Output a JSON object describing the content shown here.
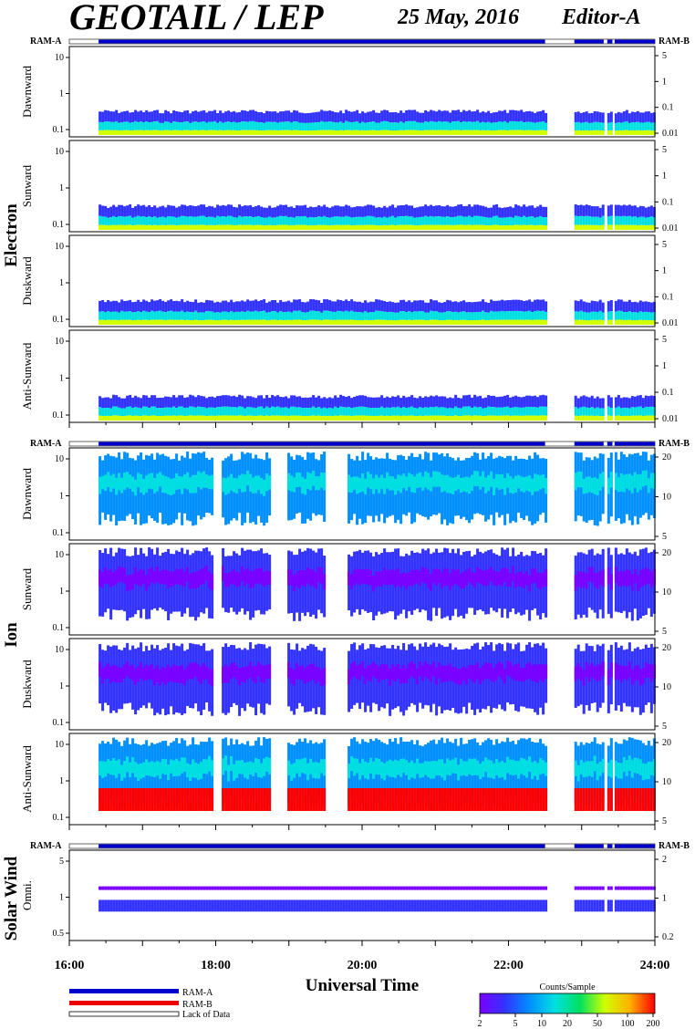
{
  "header": {
    "title": "GEOTAIL / LEP",
    "date": "25 May, 2016",
    "editor": "Editor-A"
  },
  "ram": {
    "left": "RAM-A",
    "right": "RAM-B"
  },
  "groups": {
    "electron": "Electron",
    "ion": "Ion",
    "solar_wind": "Solar Wind"
  },
  "colors": {
    "ram_a": "#0000cc",
    "ram_b": "#ee0000",
    "lack": "#ffffff"
  },
  "legend": {
    "ram_a": "RAM-A",
    "ram_b": "RAM-B",
    "lack": "Lack of Data"
  },
  "colorbar": {
    "title": "Counts/Sample",
    "ticks": [
      "2",
      "5",
      "10",
      "20",
      "50",
      "100",
      "200"
    ],
    "colors": [
      "#7a00ff",
      "#3333ff",
      "#0090ff",
      "#00e0e0",
      "#00e060",
      "#d0ff00",
      "#ffb000",
      "#ff0000"
    ]
  },
  "chart_data": {
    "type": "heatmap",
    "xlabel": "Universal Time",
    "x_ticks": [
      "16:00",
      "18:00",
      "20:00",
      "22:00",
      "24:00"
    ],
    "x_range_hours": [
      16,
      24
    ],
    "data_coverage_hours": [
      [
        16.4,
        22.5
      ],
      [
        22.9,
        23.3
      ],
      [
        23.35,
        23.42
      ],
      [
        23.45,
        24.0
      ]
    ],
    "panels": [
      {
        "group": "Electron",
        "name": "Dawnward",
        "y_ticks": [
          "0.1",
          "1",
          "10"
        ],
        "y_right_ticks": [
          "0.01",
          "0.1",
          "1",
          "5"
        ]
      },
      {
        "group": "Electron",
        "name": "Sunward",
        "y_ticks": [
          "0.1",
          "1",
          "10"
        ],
        "y_right_ticks": [
          "0.01",
          "0.1",
          "1",
          "5"
        ]
      },
      {
        "group": "Electron",
        "name": "Duskward",
        "y_ticks": [
          "0.1",
          "1",
          "10"
        ],
        "y_right_ticks": [
          "0.01",
          "0.1",
          "1",
          "5"
        ]
      },
      {
        "group": "Electron",
        "name": "Anti-Sunward",
        "y_ticks": [
          "0.1",
          "1",
          "10"
        ],
        "y_right_ticks": [
          "0.01",
          "0.1",
          "1",
          "5"
        ]
      },
      {
        "group": "Ion",
        "name": "Dawnward",
        "y_ticks": [
          "0.1",
          "1",
          "10"
        ],
        "y_right_ticks": [
          "5",
          "10",
          "20"
        ]
      },
      {
        "group": "Ion",
        "name": "Sunward",
        "y_ticks": [
          "0.1",
          "1",
          "10"
        ],
        "y_right_ticks": [
          "5",
          "10",
          "20"
        ]
      },
      {
        "group": "Ion",
        "name": "Duskward",
        "y_ticks": [
          "0.1",
          "1",
          "10"
        ],
        "y_right_ticks": [
          "5",
          "10",
          "20"
        ]
      },
      {
        "group": "Ion",
        "name": "Anti-Sunward",
        "y_ticks": [
          "0.1",
          "1",
          "10"
        ],
        "y_right_ticks": [
          "5",
          "10",
          "20"
        ]
      },
      {
        "group": "Solar Wind",
        "name": "Omni.",
        "y_ticks": [
          "0.5",
          "1",
          "5"
        ],
        "y_right_ticks": [
          "0.2",
          "1",
          "2"
        ]
      }
    ]
  }
}
